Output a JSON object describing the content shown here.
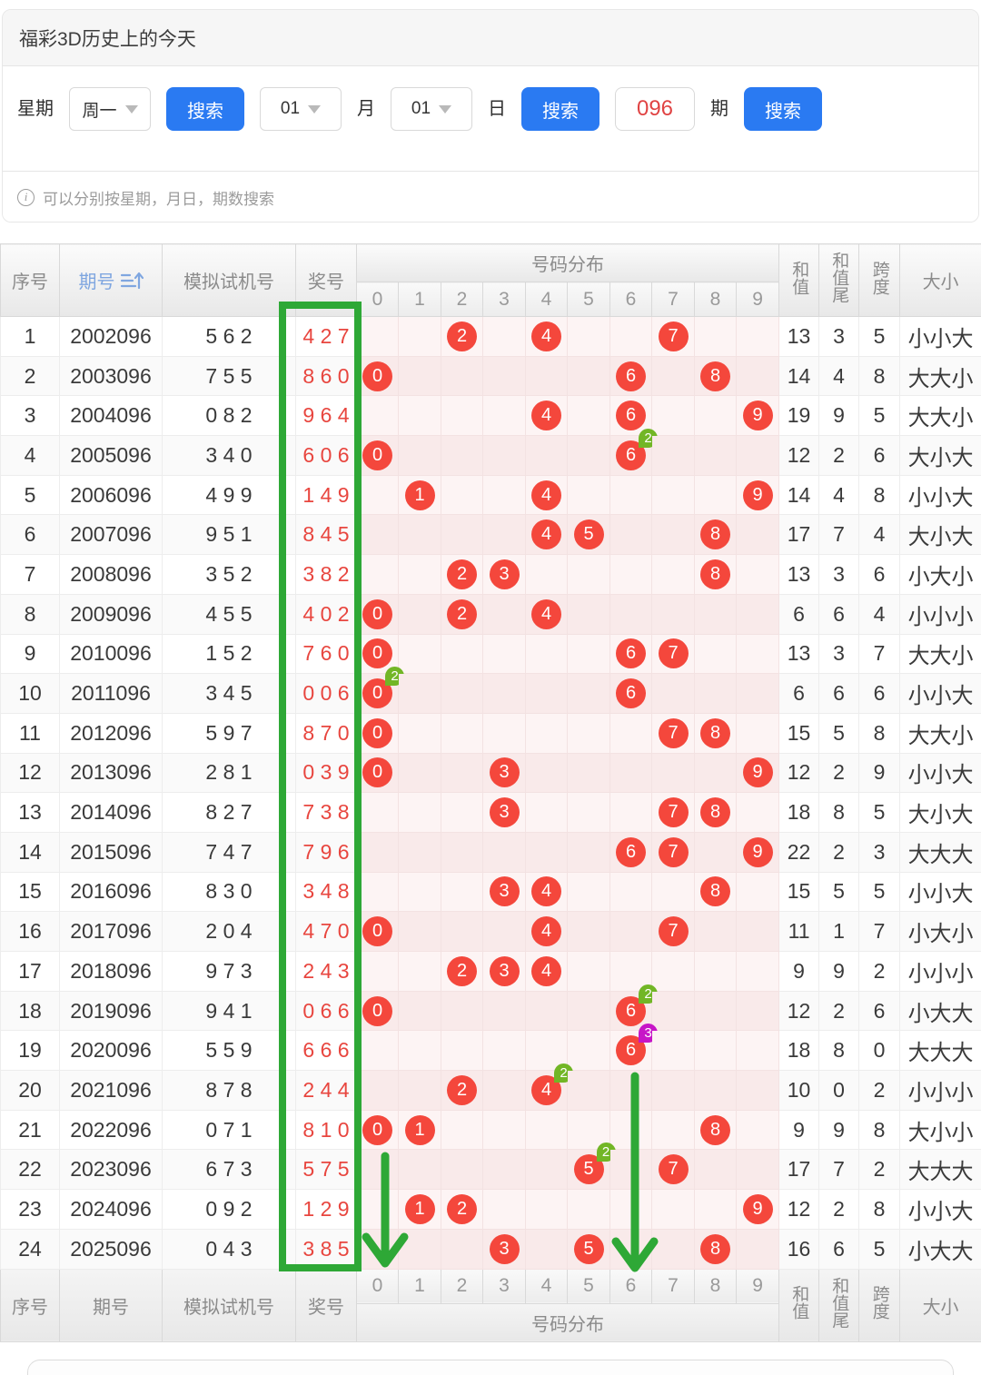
{
  "title": "福彩3D历史上的今天",
  "search": {
    "week_label": "星期",
    "week_value": "周一",
    "search_label": "搜索",
    "month_value": "01",
    "month_label": "月",
    "day_value": "01",
    "day_label": "日",
    "issue_value": "096",
    "issue_label": "期"
  },
  "info_note": "可以分别按星期，月日，期数搜索",
  "colors": {
    "accent_green": "#2ea836",
    "circle_red": "#f4473c",
    "prize_red": "#e8463f",
    "badge_green": "#72b626",
    "badge_purple": "#c715c7",
    "button_blue": "#2a7af2",
    "issue_header_blue": "#7fa6e0",
    "header_text": "#8b8b8b"
  },
  "table": {
    "headers": {
      "index": "序号",
      "issue": "期号",
      "test_number": "模拟试机号",
      "prize_number": "奖号",
      "distribution": "号码分布",
      "digits": [
        "0",
        "1",
        "2",
        "3",
        "4",
        "5",
        "6",
        "7",
        "8",
        "9"
      ],
      "sum": "和值",
      "sum_tail": "和值尾",
      "span": "跨度",
      "size": "大小"
    },
    "rows": [
      {
        "index": "1",
        "issue": "2002096",
        "test": "5 6 2",
        "prize": "4 2 7",
        "marks": [
          {
            "d": 2
          },
          {
            "d": 4
          },
          {
            "d": 7
          }
        ],
        "sum": "13",
        "tail": "3",
        "span": "5",
        "size": "小小大"
      },
      {
        "index": "2",
        "issue": "2003096",
        "test": "7 5 5",
        "prize": "8 6 0",
        "marks": [
          {
            "d": 0
          },
          {
            "d": 6
          },
          {
            "d": 8
          }
        ],
        "sum": "14",
        "tail": "4",
        "span": "8",
        "size": "大大小"
      },
      {
        "index": "3",
        "issue": "2004096",
        "test": "0 8 2",
        "prize": "9 6 4",
        "marks": [
          {
            "d": 4
          },
          {
            "d": 6
          },
          {
            "d": 9
          }
        ],
        "sum": "19",
        "tail": "9",
        "span": "5",
        "size": "大大小"
      },
      {
        "index": "4",
        "issue": "2005096",
        "test": "3 4 0",
        "prize": "6 0 6",
        "marks": [
          {
            "d": 0
          },
          {
            "d": 6,
            "b": "2",
            "bc": "green"
          }
        ],
        "sum": "12",
        "tail": "2",
        "span": "6",
        "size": "大小大"
      },
      {
        "index": "5",
        "issue": "2006096",
        "test": "4 9 9",
        "prize": "1 4 9",
        "marks": [
          {
            "d": 1
          },
          {
            "d": 4
          },
          {
            "d": 9
          }
        ],
        "sum": "14",
        "tail": "4",
        "span": "8",
        "size": "小小大"
      },
      {
        "index": "6",
        "issue": "2007096",
        "test": "9 5 1",
        "prize": "8 4 5",
        "marks": [
          {
            "d": 4
          },
          {
            "d": 5
          },
          {
            "d": 8
          }
        ],
        "sum": "17",
        "tail": "7",
        "span": "4",
        "size": "大小大"
      },
      {
        "index": "7",
        "issue": "2008096",
        "test": "3 5 2",
        "prize": "3 8 2",
        "marks": [
          {
            "d": 2
          },
          {
            "d": 3
          },
          {
            "d": 8
          }
        ],
        "sum": "13",
        "tail": "3",
        "span": "6",
        "size": "小大小"
      },
      {
        "index": "8",
        "issue": "2009096",
        "test": "4 5 5",
        "prize": "4 0 2",
        "marks": [
          {
            "d": 0
          },
          {
            "d": 2
          },
          {
            "d": 4
          }
        ],
        "sum": "6",
        "tail": "6",
        "span": "4",
        "size": "小小小"
      },
      {
        "index": "9",
        "issue": "2010096",
        "test": "1 5 2",
        "prize": "7 6 0",
        "marks": [
          {
            "d": 0
          },
          {
            "d": 6
          },
          {
            "d": 7
          }
        ],
        "sum": "13",
        "tail": "3",
        "span": "7",
        "size": "大大小"
      },
      {
        "index": "10",
        "issue": "2011096",
        "test": "3 4 5",
        "prize": "0 0 6",
        "marks": [
          {
            "d": 0,
            "b": "2",
            "bc": "green"
          },
          {
            "d": 6
          }
        ],
        "sum": "6",
        "tail": "6",
        "span": "6",
        "size": "小小大"
      },
      {
        "index": "11",
        "issue": "2012096",
        "test": "5 9 7",
        "prize": "8 7 0",
        "marks": [
          {
            "d": 0
          },
          {
            "d": 7
          },
          {
            "d": 8
          }
        ],
        "sum": "15",
        "tail": "5",
        "span": "8",
        "size": "大大小"
      },
      {
        "index": "12",
        "issue": "2013096",
        "test": "2 8 1",
        "prize": "0 3 9",
        "marks": [
          {
            "d": 0
          },
          {
            "d": 3
          },
          {
            "d": 9
          }
        ],
        "sum": "12",
        "tail": "2",
        "span": "9",
        "size": "小小大"
      },
      {
        "index": "13",
        "issue": "2014096",
        "test": "8 2 7",
        "prize": "7 3 8",
        "marks": [
          {
            "d": 3
          },
          {
            "d": 7
          },
          {
            "d": 8
          }
        ],
        "sum": "18",
        "tail": "8",
        "span": "5",
        "size": "大小大"
      },
      {
        "index": "14",
        "issue": "2015096",
        "test": "7 4 7",
        "prize": "7 9 6",
        "marks": [
          {
            "d": 6
          },
          {
            "d": 7
          },
          {
            "d": 9
          }
        ],
        "sum": "22",
        "tail": "2",
        "span": "3",
        "size": "大大大"
      },
      {
        "index": "15",
        "issue": "2016096",
        "test": "8 3 0",
        "prize": "3 4 8",
        "marks": [
          {
            "d": 3
          },
          {
            "d": 4
          },
          {
            "d": 8
          }
        ],
        "sum": "15",
        "tail": "5",
        "span": "5",
        "size": "小小大"
      },
      {
        "index": "16",
        "issue": "2017096",
        "test": "2 0 4",
        "prize": "4 7 0",
        "marks": [
          {
            "d": 0
          },
          {
            "d": 4
          },
          {
            "d": 7
          }
        ],
        "sum": "11",
        "tail": "1",
        "span": "7",
        "size": "小大小"
      },
      {
        "index": "17",
        "issue": "2018096",
        "test": "9 7 3",
        "prize": "2 4 3",
        "marks": [
          {
            "d": 2
          },
          {
            "d": 3
          },
          {
            "d": 4
          }
        ],
        "sum": "9",
        "tail": "9",
        "span": "2",
        "size": "小小小"
      },
      {
        "index": "18",
        "issue": "2019096",
        "test": "9 4 1",
        "prize": "0 6 6",
        "marks": [
          {
            "d": 0
          },
          {
            "d": 6,
            "b": "2",
            "bc": "green"
          }
        ],
        "sum": "12",
        "tail": "2",
        "span": "6",
        "size": "小大大"
      },
      {
        "index": "19",
        "issue": "2020096",
        "test": "5 5 9",
        "prize": "6 6 6",
        "marks": [
          {
            "d": 6,
            "b": "3",
            "bc": "purple"
          }
        ],
        "sum": "18",
        "tail": "8",
        "span": "0",
        "size": "大大大"
      },
      {
        "index": "20",
        "issue": "2021096",
        "test": "8 7 8",
        "prize": "2 4 4",
        "marks": [
          {
            "d": 2
          },
          {
            "d": 4,
            "b": "2",
            "bc": "green"
          }
        ],
        "sum": "10",
        "tail": "0",
        "span": "2",
        "size": "小小小"
      },
      {
        "index": "21",
        "issue": "2022096",
        "test": "0 7 1",
        "prize": "8 1 0",
        "marks": [
          {
            "d": 0
          },
          {
            "d": 1
          },
          {
            "d": 8
          }
        ],
        "sum": "9",
        "tail": "9",
        "span": "8",
        "size": "大小小"
      },
      {
        "index": "22",
        "issue": "2023096",
        "test": "6 7 3",
        "prize": "5 7 5",
        "marks": [
          {
            "d": 5,
            "b": "2",
            "bc": "green"
          },
          {
            "d": 7
          }
        ],
        "sum": "17",
        "tail": "7",
        "span": "2",
        "size": "大大大"
      },
      {
        "index": "23",
        "issue": "2024096",
        "test": "0 9 2",
        "prize": "1 2 9",
        "marks": [
          {
            "d": 1
          },
          {
            "d": 2
          },
          {
            "d": 9
          }
        ],
        "sum": "12",
        "tail": "2",
        "span": "8",
        "size": "小小大"
      },
      {
        "index": "24",
        "issue": "2025096",
        "test": "0 4 3",
        "prize": "3 8 5",
        "marks": [
          {
            "d": 3
          },
          {
            "d": 5
          },
          {
            "d": 8
          }
        ],
        "sum": "16",
        "tail": "6",
        "span": "5",
        "size": "小大大"
      }
    ]
  }
}
